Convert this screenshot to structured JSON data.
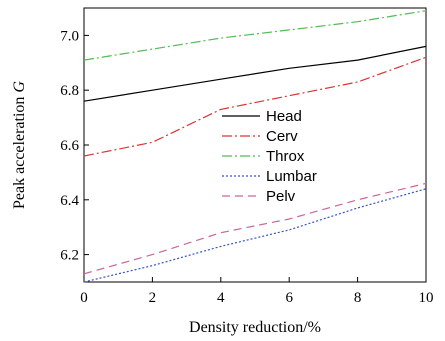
{
  "chart_data": {
    "type": "line",
    "xlabel": "Density reduction/%",
    "ylabel_prefix": "Peak acceleration ",
    "ylabel_symbol": "G",
    "xlim": [
      0,
      10
    ],
    "ylim": [
      6.1,
      7.1
    ],
    "x_ticks": [
      0,
      2,
      4,
      6,
      8,
      10
    ],
    "x_tick_labels": [
      "0",
      "2",
      "4",
      "6",
      "8",
      "10"
    ],
    "y_ticks": [
      6.2,
      6.4,
      6.6,
      6.8,
      7.0
    ],
    "y_tick_labels": [
      "6.2",
      "6.4",
      "6.6",
      "6.8",
      "7.0"
    ],
    "grid": false,
    "legend_position": "center",
    "x": [
      0,
      2,
      4,
      6,
      8,
      10
    ],
    "series": [
      {
        "name": "Head",
        "values": [
          6.76,
          6.8,
          6.84,
          6.88,
          6.91,
          6.96
        ],
        "color": "#000000",
        "dash": "solid"
      },
      {
        "name": "Cerv",
        "values": [
          6.56,
          6.61,
          6.73,
          6.78,
          6.83,
          6.92
        ],
        "color": "#dd3333",
        "dash": "dashdot"
      },
      {
        "name": "Throx",
        "values": [
          6.91,
          6.95,
          6.99,
          7.02,
          7.05,
          7.09
        ],
        "color": "#55bb55",
        "dash": "dashdot"
      },
      {
        "name": "Lumbar",
        "values": [
          6.1,
          6.16,
          6.23,
          6.29,
          6.37,
          6.44
        ],
        "color": "#3355cc",
        "dash": "dotted"
      },
      {
        "name": "Pelv",
        "values": [
          6.13,
          6.2,
          6.28,
          6.33,
          6.4,
          6.46
        ],
        "color": "#cc6699",
        "dash": "dashed"
      }
    ]
  }
}
